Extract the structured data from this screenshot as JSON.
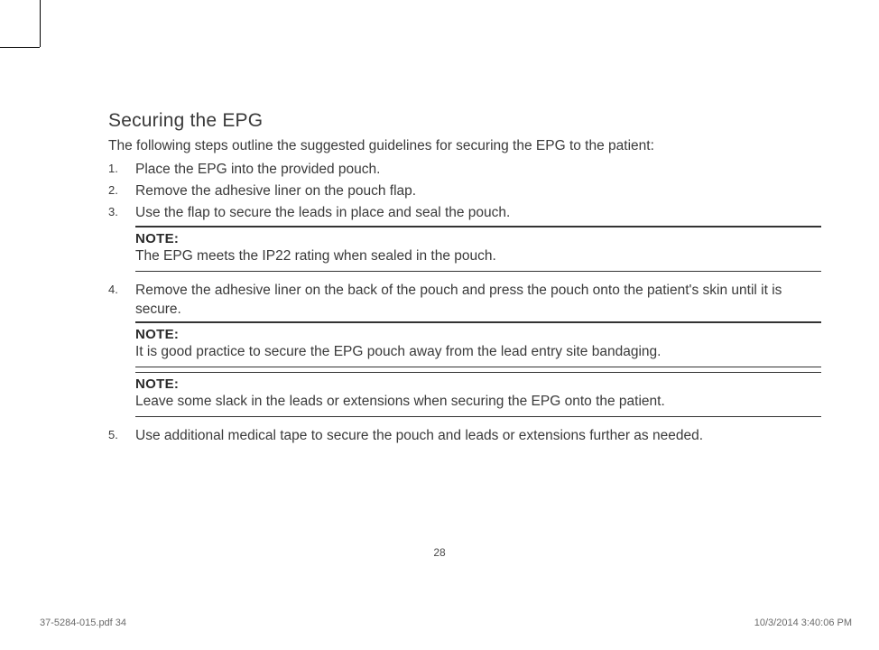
{
  "heading": "Securing the EPG",
  "intro": "The following steps outline the suggested guidelines for securing the EPG to the patient:",
  "steps": {
    "s1": "Place the EPG into the provided pouch.",
    "s2": "Remove the adhesive liner on the pouch flap.",
    "s3": "Use the flap to secure the leads in place and seal the pouch.",
    "s4": "Remove the adhesive liner on the back of the pouch and press the pouch onto the patient's skin until it is secure.",
    "s5": "Use additional medical tape to secure the pouch and leads or extensions further as needed."
  },
  "notes": {
    "label": "NOTE:",
    "n1": "The EPG meets the IP22 rating when sealed in the pouch.",
    "n2": "It is good practice to secure the EPG pouch away from the lead entry site bandaging.",
    "n3": "Leave some slack in the leads or extensions when securing the EPG onto the patient."
  },
  "page_number": "28",
  "footer": {
    "file": "37-5284-015.pdf   34",
    "datetime": "10/3/2014   3:40:06 PM"
  }
}
